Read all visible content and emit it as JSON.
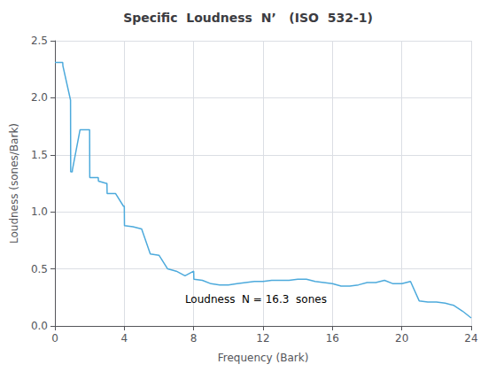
{
  "chart_data": {
    "type": "line",
    "title": "Specific  Loudness  N’   (ISO  532-1)",
    "xlabel": "Frequency (Bark)",
    "ylabel": "Loudness (sones/Bark)",
    "annotations": [
      {
        "text": "Loudness  N = 16.3  sones",
        "x": 7.5,
        "y": 0.175
      }
    ],
    "color": "#4DAADC",
    "grid": true,
    "xlim": [
      0,
      24
    ],
    "ylim": [
      0,
      2.5
    ],
    "xticks": [
      0,
      4,
      8,
      12,
      16,
      20,
      24
    ],
    "yticks": [
      {
        "value": 0,
        "label": "0.0"
      },
      0.5,
      {
        "value": 1.0,
        "label": "1.0"
      },
      1.5,
      {
        "value": 2.0,
        "label": "2.0"
      },
      2.5
    ],
    "x": [
      0.0,
      0.45,
      0.46,
      0.9,
      0.91,
      1.0,
      1.01,
      1.45,
      1.46,
      1.85,
      1.86,
      2.0,
      2.01,
      2.5,
      2.51,
      2.95,
      2.96,
      3.0,
      3.01,
      3.5,
      3.51,
      3.95,
      3.96,
      4.0,
      4.01,
      4.5,
      4.51,
      5.0,
      5.01,
      5.5,
      5.51,
      6.0,
      6.01,
      6.5,
      6.51,
      7.0,
      7.01,
      7.5,
      7.51,
      8.0,
      8.01,
      8.5,
      8.51,
      9.0,
      9.01,
      9.5,
      9.51,
      10.0,
      10.01,
      10.5,
      10.51,
      11.0,
      11.01,
      11.5,
      11.51,
      12.0,
      12.01,
      12.5,
      12.51,
      13.0,
      13.01,
      13.5,
      13.51,
      14.0,
      14.01,
      14.5,
      14.51,
      15.0,
      15.01,
      15.5,
      15.51,
      16.0,
      16.01,
      16.5,
      16.51,
      17.0,
      17.01,
      17.5,
      17.51,
      18.0,
      18.01,
      18.5,
      18.51,
      19.0,
      19.01,
      19.5,
      19.51,
      20.0,
      20.01,
      20.5,
      20.51,
      21.0,
      21.01,
      21.5,
      21.51,
      22.0,
      22.01,
      22.5,
      22.51,
      23.0,
      23.01,
      23.5,
      23.51,
      24.0
    ],
    "values": [
      2.31,
      2.31,
      2.28,
      1.98,
      1.35,
      1.35,
      1.37,
      1.72,
      1.72,
      1.72,
      1.72,
      1.72,
      1.3,
      1.3,
      1.27,
      1.25,
      1.25,
      1.25,
      1.16,
      1.16,
      1.16,
      1.05,
      1.05,
      1.05,
      0.88,
      0.87,
      0.87,
      0.85,
      0.85,
      0.63,
      0.63,
      0.62,
      0.62,
      0.5,
      0.5,
      0.48,
      0.48,
      0.44,
      0.44,
      0.48,
      0.41,
      0.4,
      0.4,
      0.37,
      0.37,
      0.36,
      0.36,
      0.36,
      0.36,
      0.37,
      0.37,
      0.38,
      0.38,
      0.39,
      0.39,
      0.39,
      0.39,
      0.4,
      0.4,
      0.4,
      0.4,
      0.4,
      0.4,
      0.41,
      0.41,
      0.41,
      0.41,
      0.39,
      0.39,
      0.38,
      0.38,
      0.37,
      0.37,
      0.35,
      0.35,
      0.35,
      0.35,
      0.36,
      0.36,
      0.38,
      0.38,
      0.38,
      0.38,
      0.4,
      0.4,
      0.37,
      0.37,
      0.37,
      0.37,
      0.39,
      0.39,
      0.22,
      0.22,
      0.21,
      0.21,
      0.21,
      0.21,
      0.2,
      0.2,
      0.18,
      0.18,
      0.13,
      0.13,
      0.07
    ]
  }
}
